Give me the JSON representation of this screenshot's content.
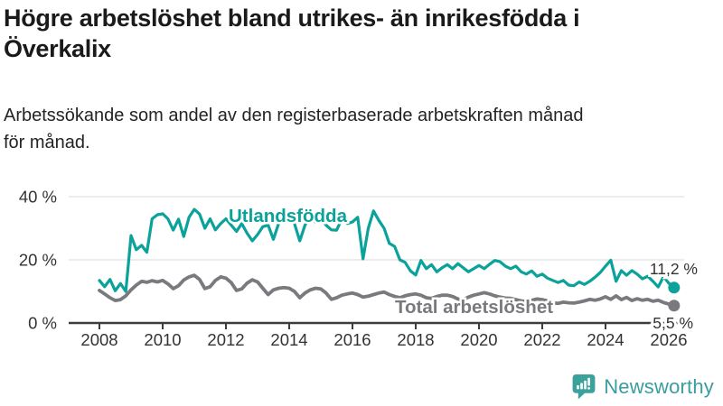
{
  "header": {
    "title_lines": [
      "Högre arbetslöshet bland utrikes- än inrikesfödda i",
      "Överkalix"
    ],
    "subtitle_lines": [
      "Arbetssökande som andel av den registerbaserade arbetskraften månad",
      "för månad."
    ]
  },
  "chart_data": {
    "type": "line",
    "title": "Högre arbetslöshet bland utrikes- än inrikesfödda i Överkalix",
    "subtitle": "Arbetssökande som andel av den registerbaserade arbetskraften månad för månad.",
    "x_start_year": 2008,
    "points_per_year": 6,
    "x_ticks": [
      "2008",
      "2010",
      "2012",
      "2014",
      "2016",
      "2018",
      "2020",
      "2022",
      "2024",
      "2026"
    ],
    "y_ticks": [
      {
        "label": "0 %",
        "value": 0
      },
      {
        "label": "20 %",
        "value": 20
      },
      {
        "label": "40 %",
        "value": 40
      }
    ],
    "ylim": [
      0,
      43
    ],
    "grid": true,
    "legend_position": "inline-labels",
    "colors": {
      "grid": "#e0e0e0",
      "axis": "#3d3d3d",
      "tick_text": "#333333",
      "end_label_text": "#333333"
    },
    "series": [
      {
        "name": "Total arbetslöshet",
        "color": "#7a7a7e",
        "end_label": "5,5 %",
        "end_value": 5.5,
        "values": [
          10.3,
          9.2,
          8.0,
          7.1,
          7.4,
          8.6,
          10.5,
          12.0,
          13.2,
          12.9,
          13.4,
          13.0,
          13.5,
          12.4,
          10.9,
          11.8,
          13.6,
          14.6,
          15.1,
          13.8,
          10.9,
          11.5,
          13.5,
          14.6,
          14.2,
          12.8,
          10.3,
          10.8,
          12.6,
          13.7,
          13.0,
          11.0,
          9.0,
          10.5,
          11.0,
          11.2,
          11.0,
          10.0,
          8.0,
          9.5,
          10.5,
          11.0,
          10.8,
          9.5,
          7.5,
          8.0,
          8.8,
          9.2,
          9.5,
          9.0,
          8.2,
          8.5,
          9.0,
          9.5,
          9.8,
          9.0,
          8.4,
          8.0,
          8.6,
          9.0,
          9.2,
          8.8,
          8.0,
          7.8,
          8.4,
          8.8,
          8.8,
          8.4,
          7.6,
          7.4,
          8.2,
          8.8,
          9.2,
          9.6,
          9.2,
          8.6,
          8.2,
          7.9,
          7.8,
          7.4,
          7.0,
          6.8,
          7.2,
          7.6,
          7.4,
          7.0,
          6.4,
          6.2,
          6.6,
          6.4,
          6.3,
          6.6,
          7.0,
          7.5,
          7.2,
          7.6,
          8.3,
          7.5,
          8.6,
          7.4,
          8.1,
          7.1,
          7.7,
          7.2,
          7.5,
          6.9,
          7.2,
          6.5,
          6.0,
          5.5
        ]
      },
      {
        "name": "Utlandsfödda",
        "color": "#0aa29a",
        "end_label": "11,2 %",
        "end_value": 11.2,
        "values": [
          13.5,
          11.5,
          13.8,
          10.2,
          12.5,
          10.0,
          27.7,
          23.2,
          24.6,
          22.4,
          33.0,
          34.3,
          34.6,
          33.0,
          29.4,
          32.9,
          27.4,
          33.5,
          36.0,
          34.5,
          30.0,
          33.0,
          29.5,
          31.5,
          33.0,
          31.0,
          29.0,
          31.5,
          28.5,
          26.0,
          28.0,
          30.5,
          31.0,
          26.5,
          31.5,
          33.0,
          34.0,
          31.5,
          26.0,
          31.0,
          33.5,
          32.0,
          33.0,
          31.0,
          29.5,
          29.4,
          33.0,
          31.5,
          32.0,
          33.5,
          20.3,
          30.0,
          35.5,
          32.5,
          30.0,
          25.2,
          24.2,
          20.0,
          19.2,
          16.5,
          15.2,
          19.8,
          17.2,
          18.5,
          16.2,
          17.5,
          18.5,
          17.2,
          18.8,
          17.5,
          16.2,
          17.2,
          18.2,
          17.2,
          18.6,
          19.8,
          19.4,
          18.0,
          17.2,
          18.0,
          16.2,
          15.5,
          16.5,
          14.8,
          15.5,
          14.2,
          13.5,
          12.8,
          13.5,
          12.0,
          11.8,
          13.0,
          12.2,
          13.2,
          14.5,
          16.0,
          18.0,
          19.9,
          13.2,
          16.6,
          15.1,
          16.6,
          15.5,
          14.0,
          14.8,
          13.2,
          11.4,
          14.7,
          12.6,
          11.2
        ]
      }
    ]
  },
  "footer": {
    "brand": "Newsworthy",
    "brand_color": "#3a9da1",
    "logo_icon": "bar-chart-speech-bubble-icon",
    "logo_bubble_color": "#3ba19b"
  }
}
